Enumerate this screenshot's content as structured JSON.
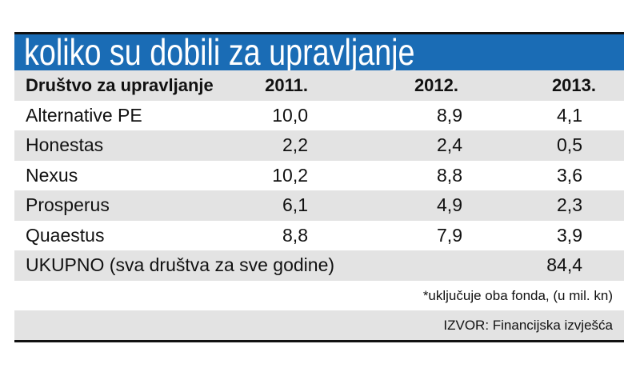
{
  "title": "koliko su dobili za upravljanje",
  "table": {
    "header": [
      "Društvo za upravljanje",
      "2011.",
      "2012.",
      "2013."
    ],
    "rows": [
      [
        "Alternative PE",
        "10,0",
        "8,9",
        "4,1"
      ],
      [
        "Honestas",
        "2,2",
        "2,4",
        "0,5"
      ],
      [
        "Nexus",
        "10,2",
        "8,8",
        "3,6"
      ],
      [
        "Prosperus",
        "6,1",
        "4,9",
        "2,3"
      ],
      [
        "Quaestus",
        "8,8",
        "7,9",
        "3,9"
      ]
    ],
    "total": {
      "label": "UKUPNO (sva društva za sve godine)",
      "value": "84,4"
    }
  },
  "note": "*uključuje oba fonda, (u mil. kn)",
  "source": "IZVOR: Financijska izvješća"
}
